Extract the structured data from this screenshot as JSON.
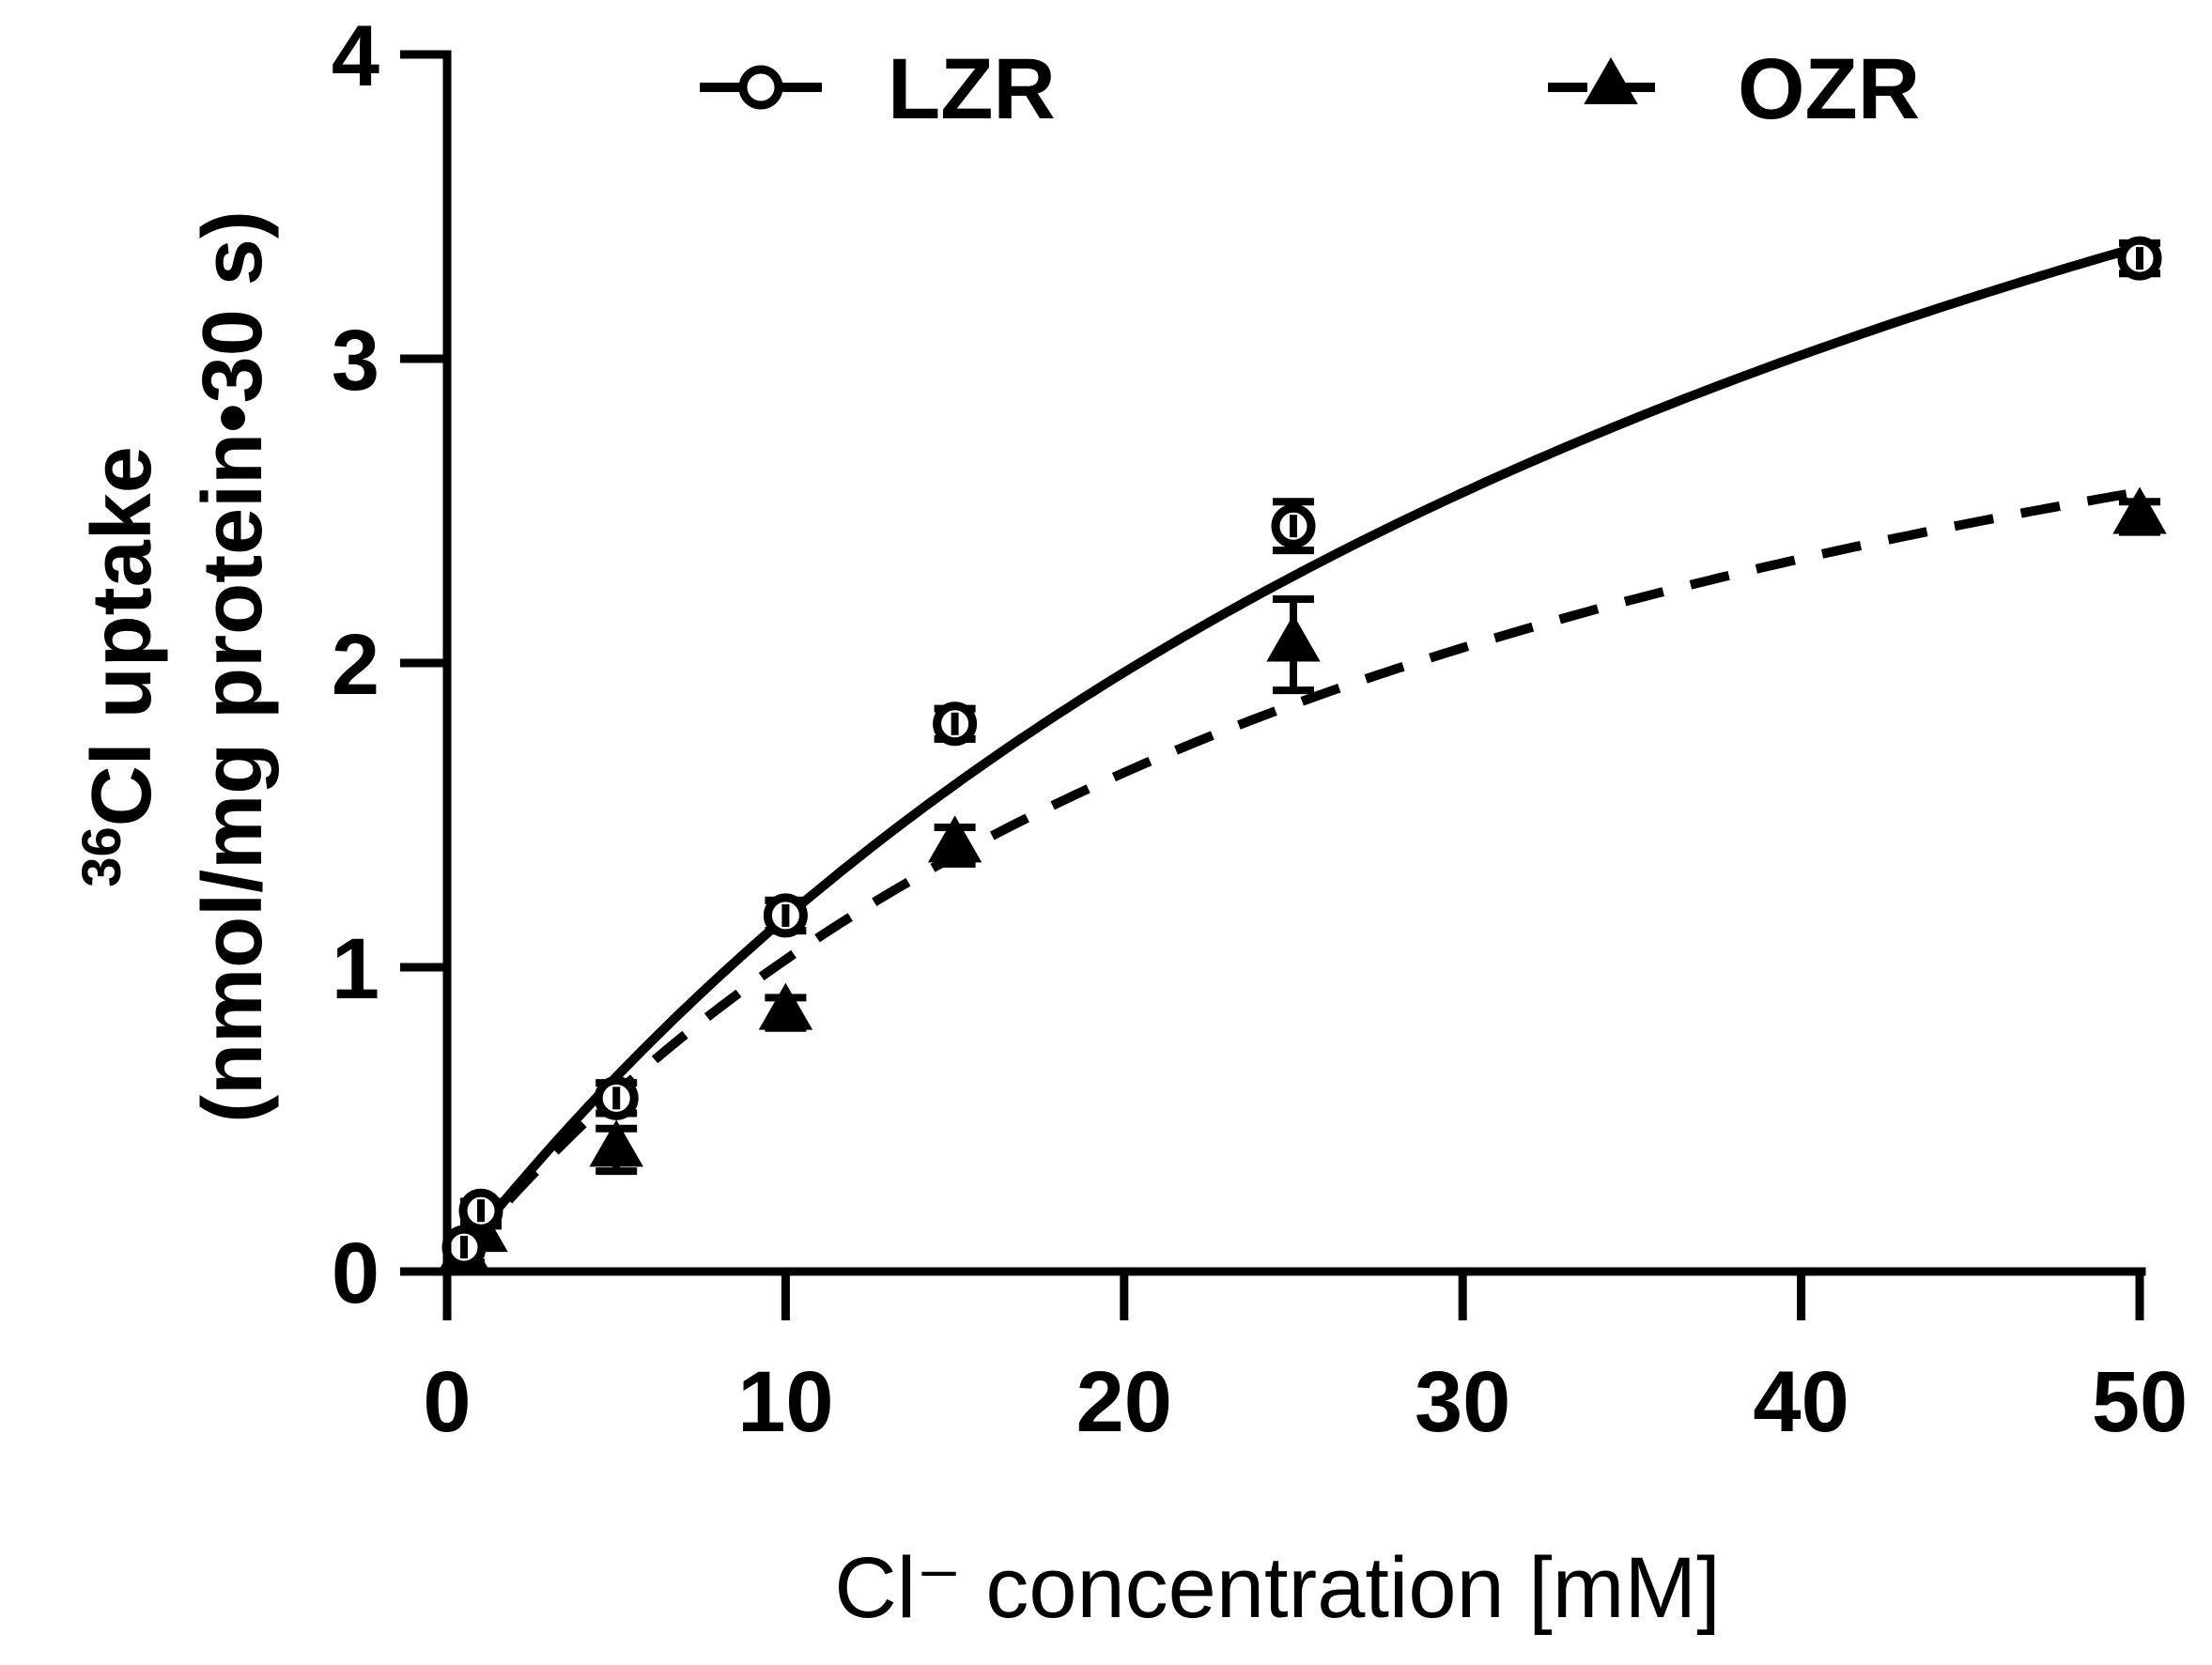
{
  "chart_data": {
    "type": "scatter",
    "title": "",
    "xlabel": "Cl⁻ concentration [mM]",
    "ylabel_line1": "36Cl uptake",
    "ylabel_superscript": "36",
    "ylabel_main": "Cl uptake",
    "ylabel_line2": "(nmol/mg protein•30 s)",
    "xlim": [
      0,
      50
    ],
    "ylim": [
      0,
      4
    ],
    "xticks": [
      0,
      10,
      20,
      30,
      40,
      50
    ],
    "yticks": [
      0,
      1,
      2,
      3,
      4
    ],
    "legend_position": "top",
    "grid": false,
    "series": [
      {
        "name": "LZR",
        "marker": "open-circle",
        "line": "solid",
        "x": [
          0.5,
          1,
          5,
          10,
          15,
          25,
          50
        ],
        "y": [
          0.08,
          0.2,
          0.57,
          1.17,
          1.8,
          2.45,
          3.33
        ],
        "err": [
          0.02,
          0.03,
          0.05,
          0.05,
          0.05,
          0.08,
          0.05
        ],
        "fit": {
          "model": "Michaelis-Menten",
          "vmax": 6.4,
          "km": 45
        }
      },
      {
        "name": "OZR",
        "marker": "filled-triangle",
        "line": "dashed",
        "x": [
          0.5,
          1,
          5,
          10,
          15,
          25,
          50
        ],
        "y": [
          0.05,
          0.12,
          0.4,
          0.85,
          1.4,
          2.06,
          2.48
        ],
        "err": [
          0.02,
          0.03,
          0.07,
          0.05,
          0.06,
          0.15,
          0.05
        ],
        "fit": {
          "model": "Michaelis-Menten",
          "vmax": 4.1,
          "km": 30
        }
      }
    ]
  }
}
